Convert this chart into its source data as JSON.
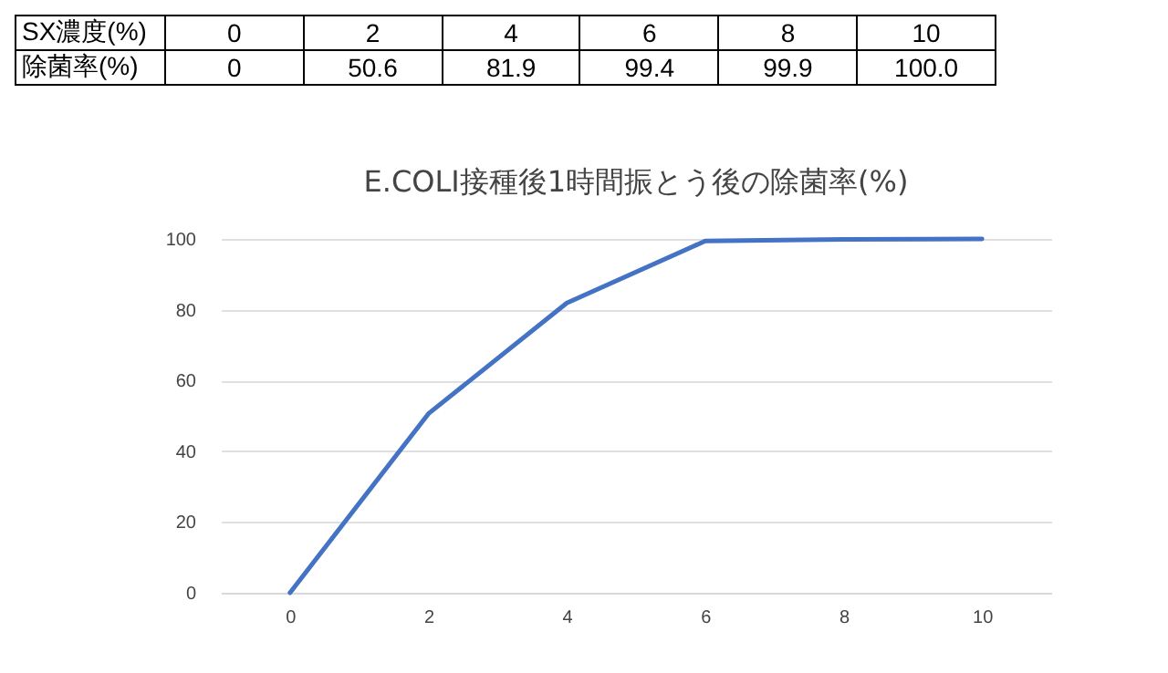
{
  "chart_data": {
    "type": "line",
    "title": "E.COLI接種後1時間振とう後の除菌率(%)",
    "categories": [
      "0",
      "2",
      "4",
      "6",
      "8",
      "10"
    ],
    "series": [
      {
        "color": "#4472c4",
        "values": [
          0,
          50.6,
          81.9,
          99.4,
          99.9,
          100.0
        ],
        "value_labels": [
          "0",
          "50.6",
          "81.9",
          "99.4",
          "99.9",
          "100.0"
        ]
      }
    ],
    "annotations": [
      "SX濃度(%)",
      "除菌率(%)"
    ],
    "ylim": [
      0,
      100
    ],
    "yticks": [
      0,
      20,
      40,
      60,
      80,
      100
    ],
    "grid": "y",
    "legend": false,
    "marker": "none",
    "line_style": "solid"
  }
}
